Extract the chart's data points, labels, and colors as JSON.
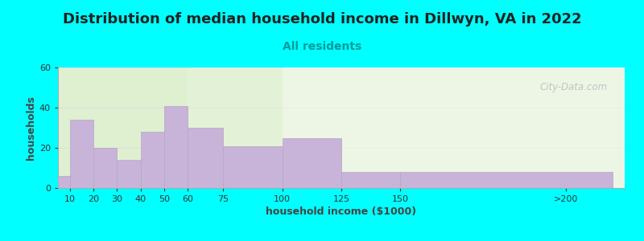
{
  "title": "Distribution of median household income in Dillwyn, VA in 2022",
  "subtitle": "All residents",
  "xlabel": "household income ($1000)",
  "ylabel": "households",
  "background_color": "#00FFFF",
  "bar_color": "#c8b4d8",
  "bar_edge_color": "#b8a4c8",
  "categories": [
    "10",
    "20",
    "30",
    "40",
    "50",
    "60",
    "75",
    "100",
    "125",
    "150",
    ">200"
  ],
  "values": [
    6,
    34,
    20,
    14,
    28,
    41,
    30,
    21,
    25,
    8,
    8
  ],
  "x_left_edges": [
    5,
    10,
    20,
    30,
    40,
    50,
    60,
    75,
    100,
    125,
    150
  ],
  "x_right_edges": [
    10,
    20,
    30,
    40,
    50,
    60,
    75,
    100,
    125,
    150,
    240
  ],
  "x_tick_positions": [
    10,
    20,
    30,
    40,
    50,
    60,
    75,
    100,
    125,
    150,
    220
  ],
  "xlim": [
    5,
    245
  ],
  "ylim": [
    0,
    60
  ],
  "yticks": [
    0,
    20,
    40,
    60
  ],
  "title_fontsize": 13,
  "subtitle_fontsize": 10,
  "label_fontsize": 9,
  "tick_fontsize": 8,
  "watermark": "City-Data.com",
  "bg_left_color": "#dff0d0",
  "bg_right_color": "#f8f8f8"
}
